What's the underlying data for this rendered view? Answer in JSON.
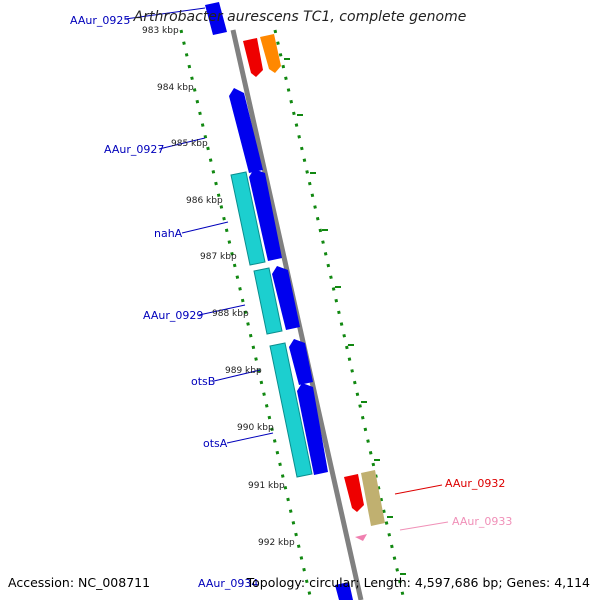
{
  "title": "Arthrobacter aurescens TC1, complete genome",
  "accession": "Accession: NC_008711",
  "footer_summary": "Topology: circular; Length: 4,597,686 bp; Genes: 4,114",
  "footer_gene": "AAur_0934",
  "colors": {
    "backbone": "#808080",
    "tick": "#118811",
    "forward_gene": "#0000ee",
    "cds_feature": "#1ccfcf",
    "label_blue": "#0000bb",
    "label_red": "#dd0000",
    "label_pink": "#f090b8",
    "gene_red": "#ee0000",
    "gene_orange": "#ff8800",
    "gene_tan": "#c0b070",
    "gene_pink": "#f080b0"
  },
  "scale_labels": [
    "983 kbp",
    "984 kbp",
    "985 kbp",
    "986 kbp",
    "987 kbp",
    "988 kbp",
    "989 kbp",
    "990 kbp",
    "991 kbp",
    "992 kbp"
  ],
  "gene_labels": [
    {
      "text": "AAur_0925",
      "color": "blue"
    },
    {
      "text": "AAur_0927",
      "color": "blue"
    },
    {
      "text": "nahA",
      "color": "blue"
    },
    {
      "text": "AAur_0929",
      "color": "blue"
    },
    {
      "text": "otsB",
      "color": "blue"
    },
    {
      "text": "otsA",
      "color": "blue"
    },
    {
      "text": "AAur_0932",
      "color": "red"
    },
    {
      "text": "AAur_0933",
      "color": "pink"
    }
  ]
}
